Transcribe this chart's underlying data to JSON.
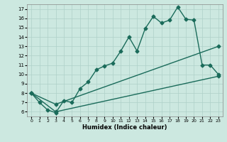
{
  "xlabel": "Humidex (Indice chaleur)",
  "xlim": [
    -0.5,
    23.5
  ],
  "ylim": [
    5.5,
    17.5
  ],
  "xticks": [
    0,
    1,
    2,
    3,
    4,
    5,
    6,
    7,
    8,
    9,
    10,
    11,
    12,
    13,
    14,
    15,
    16,
    17,
    18,
    19,
    20,
    21,
    22,
    23
  ],
  "yticks": [
    6,
    7,
    8,
    9,
    10,
    11,
    12,
    13,
    14,
    15,
    16,
    17
  ],
  "bg_color": "#cce8e0",
  "grid_color": "#aed0c8",
  "line_color": "#1a6b5a",
  "line1_x": [
    0,
    1,
    2,
    3,
    4,
    5,
    6,
    7,
    8,
    9,
    10,
    11,
    12,
    13,
    14,
    15,
    16,
    17,
    18,
    19,
    20,
    21,
    22,
    23
  ],
  "line1_y": [
    8.0,
    7.0,
    6.2,
    5.9,
    7.2,
    7.0,
    8.5,
    9.2,
    10.5,
    10.9,
    11.2,
    12.5,
    14.0,
    12.5,
    14.9,
    16.2,
    15.5,
    15.8,
    17.2,
    15.9,
    15.8,
    11.0,
    11.0,
    10.0
  ],
  "line2_x": [
    0,
    3,
    23
  ],
  "line2_y": [
    8.0,
    6.8,
    13.0
  ],
  "line3_x": [
    0,
    3,
    23
  ],
  "line3_y": [
    8.0,
    6.0,
    9.8
  ],
  "marker": "D",
  "markersize": 2.5,
  "linewidth": 1.0
}
